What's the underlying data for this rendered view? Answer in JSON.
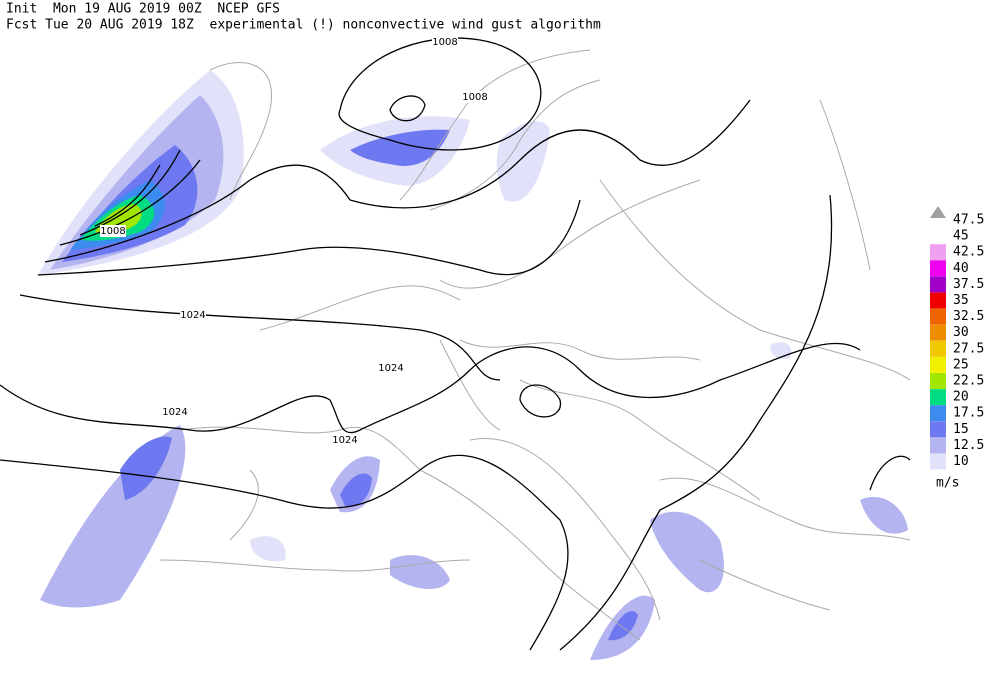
{
  "header": {
    "line1": "Init  Mon 19 AUG 2019 00Z  NCEP GFS",
    "line2": "Fcst Tue 20 AUG 2019 18Z  experimental (!) nonconvective wind gust algorithm"
  },
  "isobar_labels": [
    1008,
    1008,
    1008,
    1024,
    1024,
    1024,
    1024
  ],
  "legend": {
    "unit": "m/s",
    "items": [
      {
        "value": 47.5,
        "color": "#a0a0a0"
      },
      {
        "value": 45,
        "color": "#ffffff"
      },
      {
        "value": 42.5,
        "color": "#f0a0f0"
      },
      {
        "value": 40,
        "color": "#f000f0"
      },
      {
        "value": 37.5,
        "color": "#a000c8"
      },
      {
        "value": 35,
        "color": "#f00000"
      },
      {
        "value": 32.5,
        "color": "#f06400"
      },
      {
        "value": 30,
        "color": "#f08c00"
      },
      {
        "value": 27.5,
        "color": "#f0c800"
      },
      {
        "value": 25,
        "color": "#f0f000"
      },
      {
        "value": 22.5,
        "color": "#a0e600"
      },
      {
        "value": 20,
        "color": "#00dc82"
      },
      {
        "value": 17.5,
        "color": "#3c8cf0"
      },
      {
        "value": 15,
        "color": "#6e78f0"
      },
      {
        "value": 12.5,
        "color": "#b4b4f0"
      },
      {
        "value": 10,
        "color": "#e1e1fa"
      }
    ]
  }
}
